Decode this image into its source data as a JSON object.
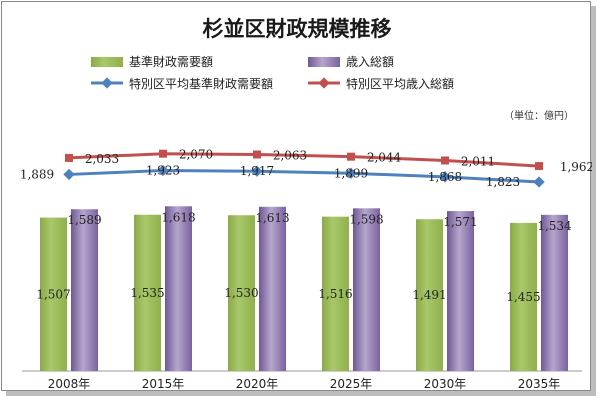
{
  "chart_data": {
    "type": "bar",
    "title": "杉並区財政規模推移",
    "unit_label": "（単位：億円）",
    "categories": [
      "2008年",
      "2015年",
      "2020年",
      "2025年",
      "2030年",
      "2035年"
    ],
    "series": [
      {
        "name": "基準財政需要額",
        "kind": "bar",
        "color": "#9bbb59",
        "values": [
          1507,
          1535,
          1530,
          1516,
          1491,
          1455
        ],
        "labels": [
          "1,507",
          "1,535",
          "1,530",
          "1,516",
          "1,491",
          "1,455"
        ]
      },
      {
        "name": "歳入総額",
        "kind": "bar",
        "color": "#8064a2",
        "values": [
          1589,
          1618,
          1613,
          1598,
          1571,
          1534
        ],
        "labels": [
          "1,589",
          "1,618",
          "1,613",
          "1,598",
          "1,571",
          "1,534"
        ]
      },
      {
        "name": "特別区平均基準財政需要額",
        "kind": "line",
        "color": "#4f81bd",
        "values": [
          1889,
          1923,
          1917,
          1899,
          1868,
          1823
        ],
        "labels": [
          "1,889",
          "1,923",
          "1,917",
          "1,899",
          "1,868",
          "1,823"
        ]
      },
      {
        "name": "特別区平均歳入総額",
        "kind": "line",
        "color": "#c0504d",
        "values": [
          2033,
          2070,
          2063,
          2044,
          2011,
          1962
        ],
        "labels": [
          "2,033",
          "2,070",
          "2,063",
          "2,044",
          "2,011",
          "1,962"
        ]
      }
    ],
    "legend_position": "top",
    "grid": false
  }
}
